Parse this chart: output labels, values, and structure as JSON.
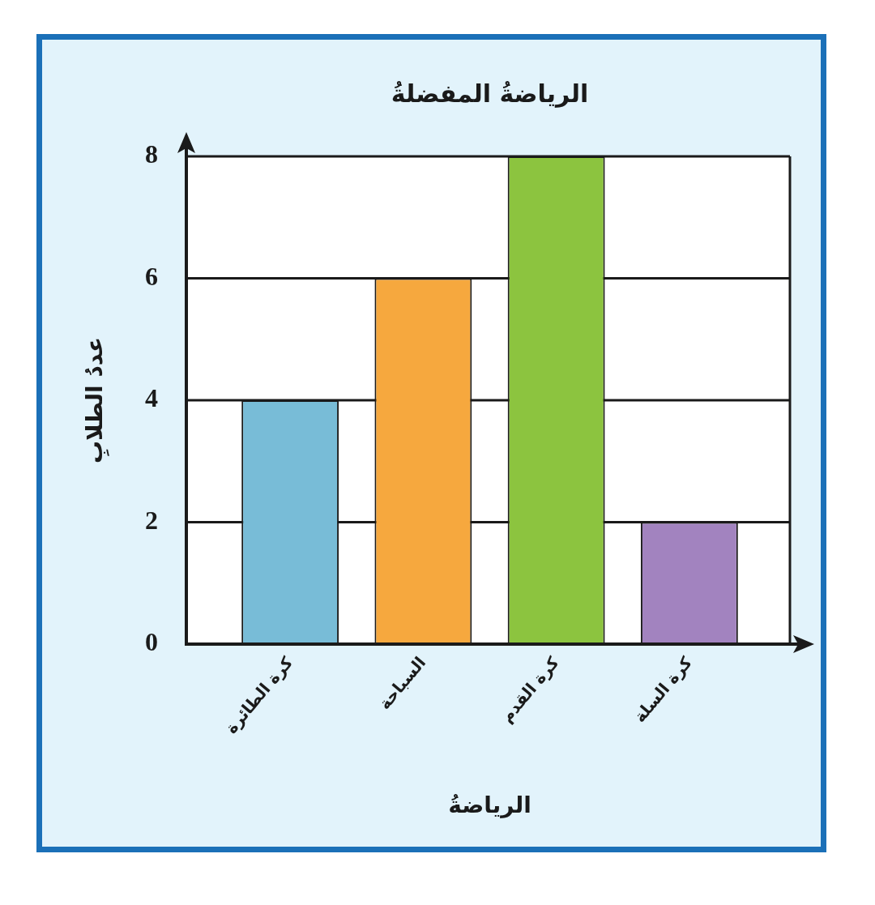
{
  "chart_data": {
    "type": "bar",
    "title": "الرياضةُ المفضلةُ",
    "xlabel": "الرياضةُ",
    "ylabel": "عددُ الطلابِ",
    "categories": [
      "كرة الطائرة",
      "السباحة",
      "كرة القدم",
      "كرة السلة"
    ],
    "values": [
      4,
      6,
      8,
      2
    ],
    "colors": [
      "#78bcd7",
      "#f6a83e",
      "#8cc43f",
      "#a283bf"
    ],
    "ylim": [
      0,
      8
    ],
    "yticks": [
      0,
      2,
      4,
      6,
      8
    ],
    "grid": "y"
  }
}
